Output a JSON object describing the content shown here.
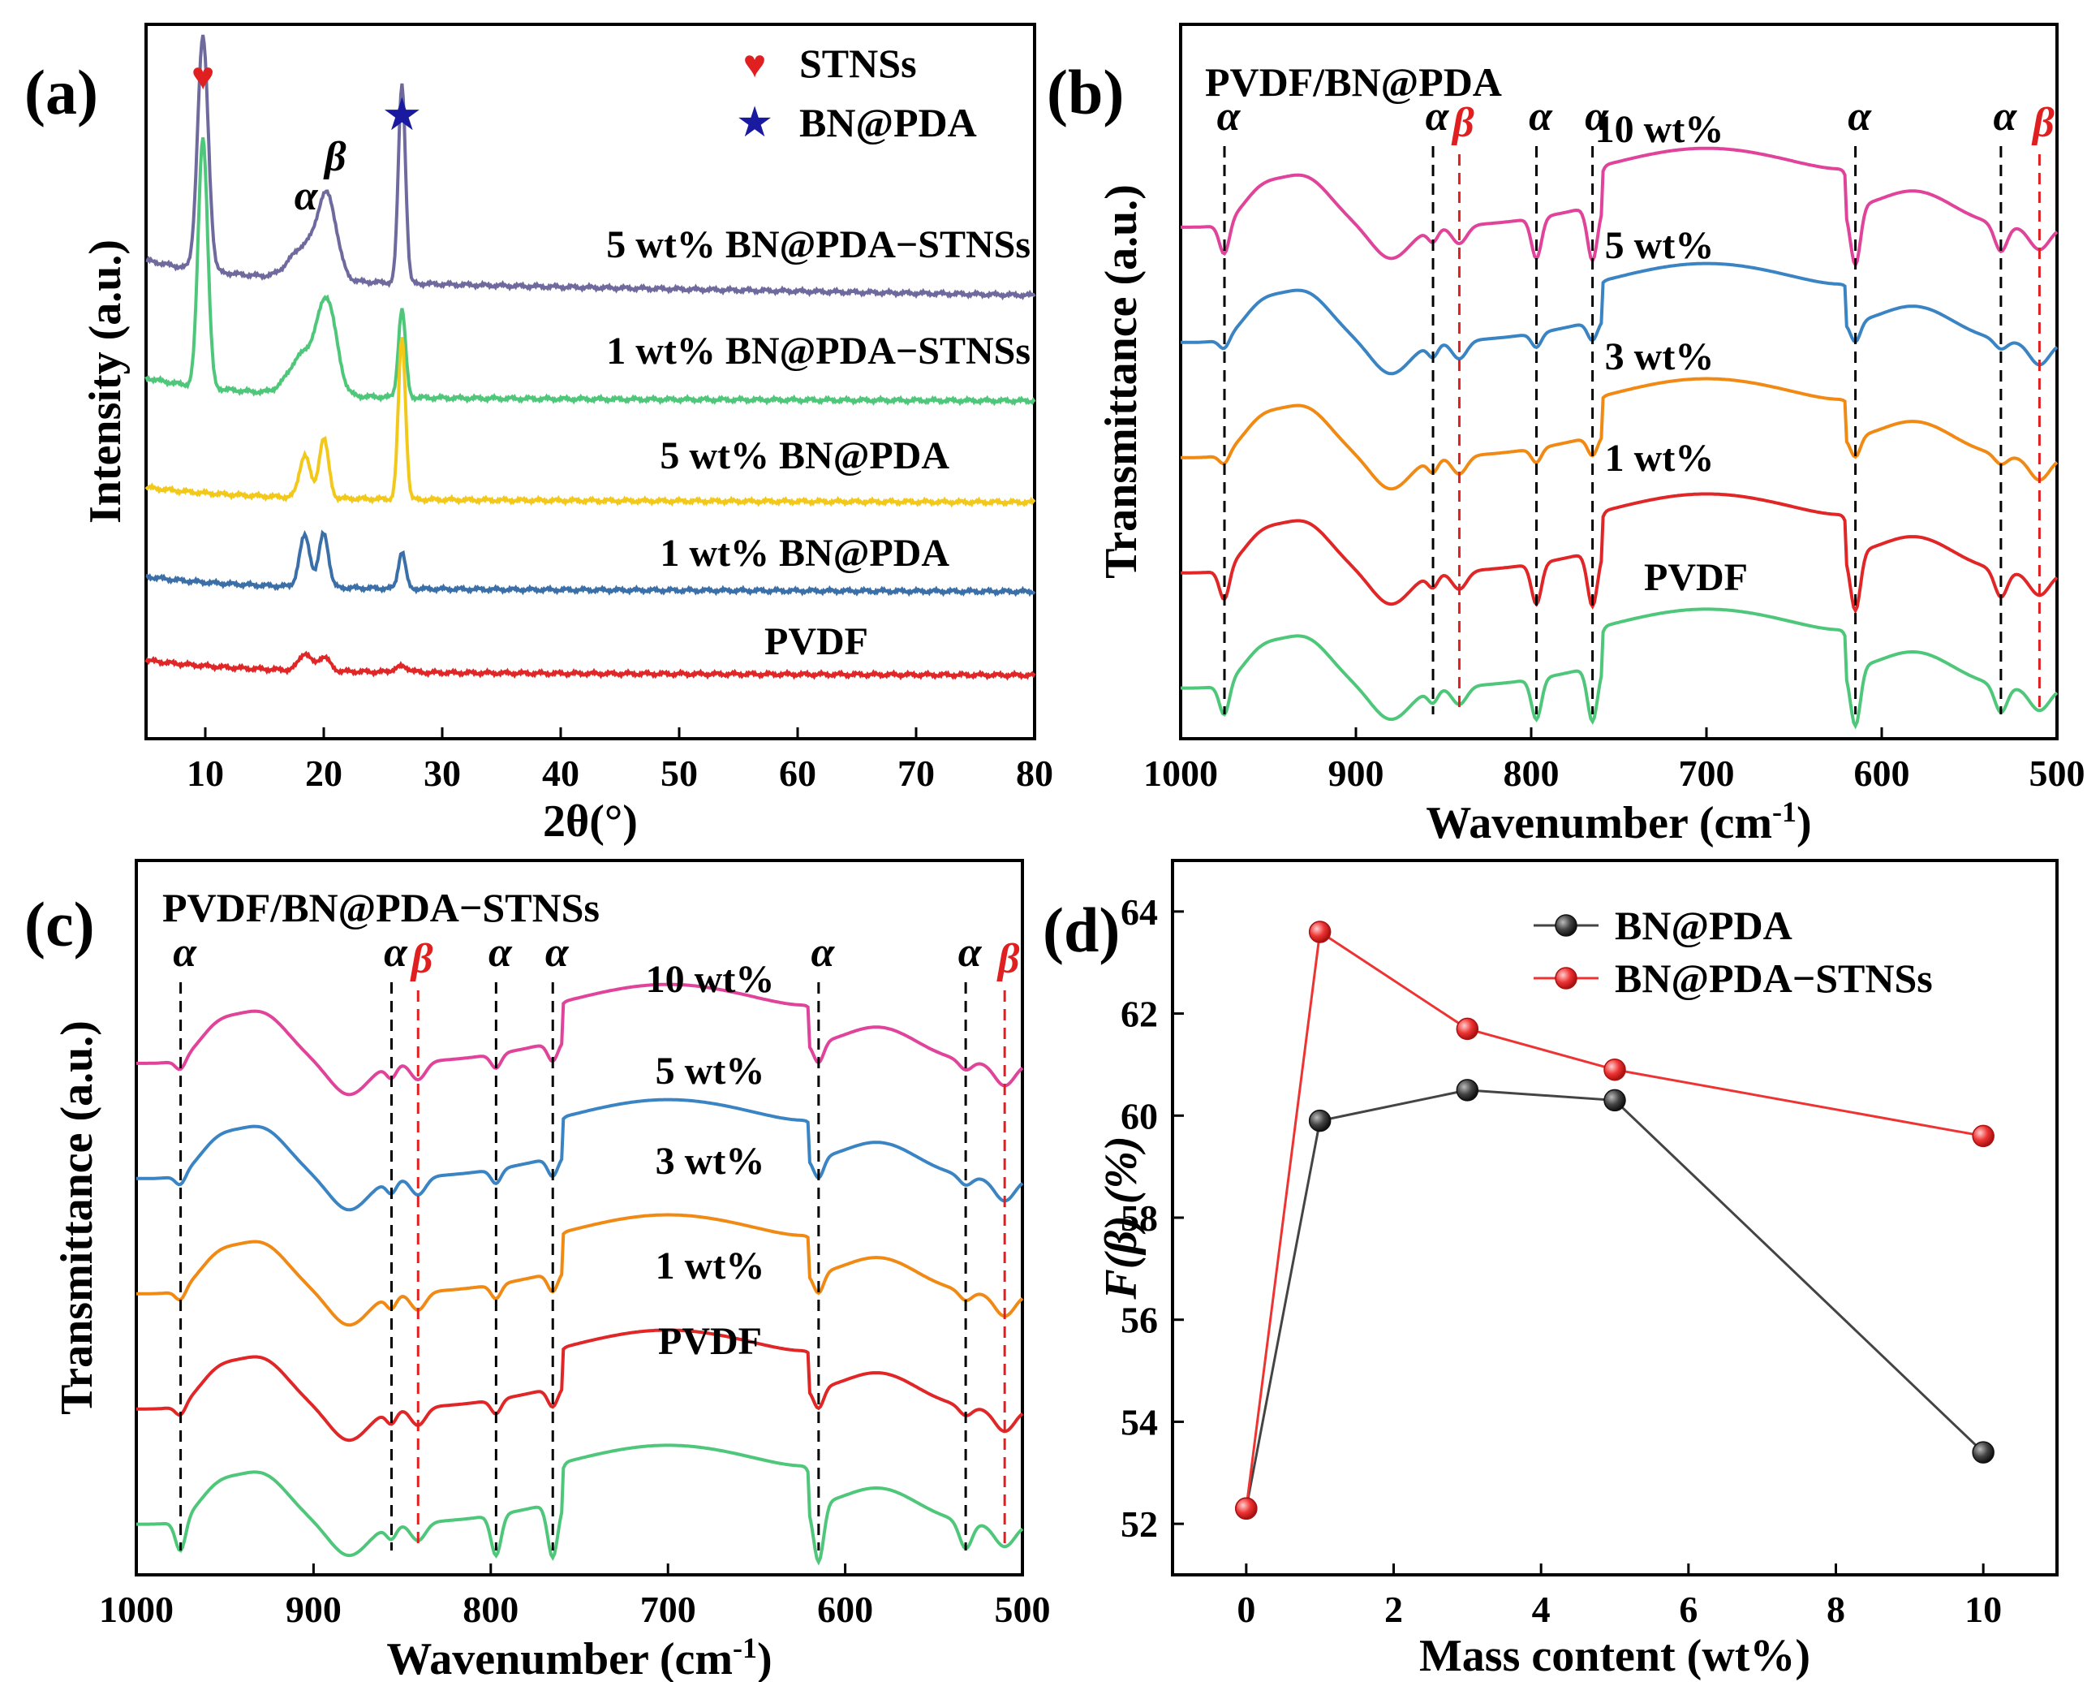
{
  "chart_data": [
    {
      "panel": "(a)",
      "type": "line",
      "xlabel": "2θ(°)",
      "ylabel": "Intensity (a.u.)",
      "xlim": [
        5,
        80
      ],
      "xticks": [
        10,
        20,
        30,
        40,
        50,
        60,
        70,
        80
      ],
      "legend": [
        {
          "symbol": "♥",
          "label": "STNSs",
          "color": "#e02020"
        },
        {
          "symbol": "★",
          "label": "BN@PDA",
          "color": "#1a1aa0"
        }
      ],
      "peak_labels": [
        {
          "text": "α",
          "x": 18.5
        },
        {
          "text": "β",
          "x": 20.3
        }
      ],
      "series": [
        {
          "name": "5 wt% BN@PDA−STNSs",
          "color": "#6e6a9e",
          "offset": 4,
          "peaks": [
            [
              9.8,
              4.1,
              0.45
            ],
            [
              18.3,
              0.55,
              1.2
            ],
            [
              20.3,
              1.4,
              0.8
            ],
            [
              26.6,
              3.5,
              0.3
            ]
          ]
        },
        {
          "name": "1 wt% BN@PDA−STNSs",
          "color": "#4fc77a",
          "offset": 3,
          "peaks": [
            [
              9.8,
              4.4,
              0.4
            ],
            [
              18.3,
              0.7,
              1.2
            ],
            [
              20.3,
              1.55,
              0.8
            ],
            [
              26.6,
              1.55,
              0.3
            ]
          ]
        },
        {
          "name": "5 wt% BN@PDA",
          "color": "#f2c81a",
          "offset": 2,
          "peaks": [
            [
              18.4,
              0.75,
              0.45
            ],
            [
              20.0,
              1.05,
              0.4
            ],
            [
              26.6,
              2.85,
              0.3
            ]
          ]
        },
        {
          "name": "1 wt% BN@PDA",
          "color": "#3b6fa8",
          "offset": 1,
          "peaks": [
            [
              18.4,
              0.9,
              0.45
            ],
            [
              20.0,
              0.95,
              0.4
            ],
            [
              26.6,
              0.65,
              0.3
            ]
          ]
        },
        {
          "name": "PVDF",
          "color": "#e02626",
          "offset": 0,
          "peaks": [
            [
              18.4,
              0.3,
              0.5
            ],
            [
              20.0,
              0.25,
              0.5
            ],
            [
              26.6,
              0.1,
              0.6
            ]
          ]
        }
      ]
    },
    {
      "panel": "(b)",
      "type": "line",
      "subtitle": "PVDF/BN@PDA",
      "xlabel": "Wavenumber (cm",
      "xlabel_sup": "-1",
      "xlabel_end": ")",
      "ylabel": "Transmittance (a.u.)",
      "xlim": [
        1000,
        500
      ],
      "xticks": [
        1000,
        900,
        800,
        700,
        600,
        500
      ],
      "alpha_lines": [
        975,
        856,
        797,
        765,
        615,
        532
      ],
      "beta_lines": [
        841,
        510
      ],
      "alpha_label": "α",
      "beta_label": "β",
      "series": [
        {
          "name": "10 wt%",
          "color": "#e0449a",
          "offset": 4
        },
        {
          "name": "5 wt%",
          "color": "#3b84c4",
          "offset": 3
        },
        {
          "name": "3 wt%",
          "color": "#f08a14",
          "offset": 2
        },
        {
          "name": "1 wt%",
          "color": "#e02626",
          "offset": 1
        },
        {
          "name": "PVDF",
          "color": "#4fc77a",
          "offset": 0
        }
      ]
    },
    {
      "panel": "(c)",
      "type": "line",
      "subtitle": "PVDF/BN@PDA−STNSs",
      "xlabel": "Wavenumber (cm",
      "xlabel_sup": "-1",
      "xlabel_end": ")",
      "ylabel": "Transmittance (a.u.)",
      "xlim": [
        1000,
        500
      ],
      "xticks": [
        1000,
        900,
        800,
        700,
        600,
        500
      ],
      "alpha_lines": [
        975,
        856,
        797,
        765,
        615,
        532
      ],
      "beta_lines": [
        841,
        510
      ],
      "alpha_label": "α",
      "beta_label": "β",
      "series": [
        {
          "name": "10 wt%",
          "color": "#e0449a",
          "offset": 4
        },
        {
          "name": "5 wt%",
          "color": "#3b84c4",
          "offset": 3
        },
        {
          "name": "3 wt%",
          "color": "#f08a14",
          "offset": 2
        },
        {
          "name": "1 wt%",
          "color": "#e02626",
          "offset": 1
        },
        {
          "name": "PVDF",
          "color": "#4fc77a",
          "offset": 0
        }
      ]
    },
    {
      "panel": "(d)",
      "type": "line",
      "xlabel": "Mass content (wt%)",
      "ylabel": "F(β) (%)",
      "xlim": [
        -1,
        11
      ],
      "ylim": [
        51,
        65
      ],
      "xticks": [
        0,
        2,
        4,
        6,
        8,
        10
      ],
      "yticks": [
        52,
        54,
        56,
        58,
        60,
        62,
        64
      ],
      "series": [
        {
          "name": "BN@PDA",
          "color": "#444444",
          "x": [
            0,
            1,
            3,
            5,
            10
          ],
          "values": [
            52.3,
            59.9,
            60.5,
            60.3,
            53.4
          ]
        },
        {
          "name": "BN@PDA−STNSs",
          "color": "#ee3333",
          "x": [
            0,
            1,
            3,
            5,
            10
          ],
          "values": [
            52.3,
            63.6,
            61.7,
            60.9,
            59.6
          ]
        }
      ]
    }
  ]
}
